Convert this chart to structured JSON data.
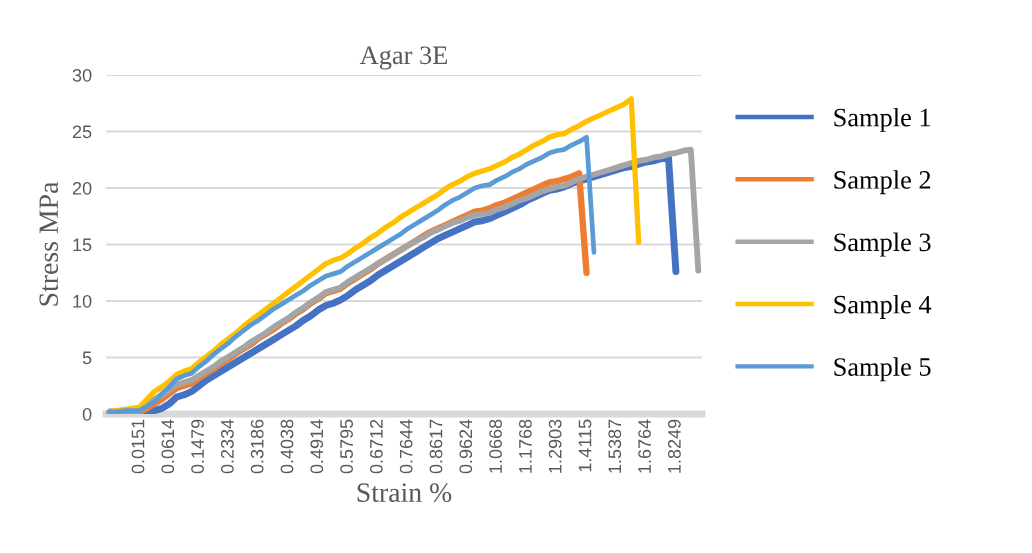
{
  "chart_data": {
    "type": "line",
    "title": "Agar 3E",
    "xlabel": "Strain %",
    "ylabel": "Stress MPa",
    "categories": [
      null,
      null,
      null,
      null,
      "0.0151",
      null,
      null,
      null,
      "0.0614",
      null,
      null,
      null,
      "0.1479",
      null,
      null,
      null,
      "0.2334",
      null,
      null,
      null,
      "0.3186",
      null,
      null,
      null,
      "0.4038",
      null,
      null,
      null,
      "0.4914",
      null,
      null,
      null,
      "0.5795",
      null,
      null,
      null,
      "0.6712",
      null,
      null,
      null,
      "0.7644",
      null,
      null,
      null,
      "0.8617",
      null,
      null,
      null,
      "0.9624",
      null,
      null,
      null,
      "1.0668",
      null,
      null,
      null,
      "1.1768",
      null,
      null,
      null,
      "1.2903",
      null,
      null,
      null,
      "1.4115",
      null,
      null,
      null,
      "1.5387",
      null,
      null,
      null,
      "1.6764",
      null,
      null,
      null,
      "1.8249",
      null,
      null,
      null
    ],
    "series": [
      {
        "name": "Sample 1",
        "color": "#4472c4",
        "values": [
          0.1,
          0.1,
          0.1,
          0.2,
          0.2,
          0.3,
          0.3,
          0.5,
          0.9,
          1.5,
          1.7,
          2.0,
          2.5,
          3.0,
          3.4,
          3.8,
          4.2,
          4.6,
          5.0,
          5.4,
          5.8,
          6.2,
          6.6,
          7.0,
          7.4,
          7.8,
          8.3,
          8.7,
          9.2,
          9.6,
          9.8,
          10.1,
          10.5,
          11.0,
          11.4,
          11.8,
          12.3,
          12.7,
          13.1,
          13.5,
          13.9,
          14.3,
          14.7,
          15.1,
          15.5,
          15.8,
          16.1,
          16.4,
          16.7,
          17.0,
          17.1,
          17.3,
          17.6,
          17.9,
          18.2,
          18.5,
          18.9,
          19.2,
          19.5,
          19.8,
          19.9,
          20.1,
          20.4,
          20.6,
          20.8,
          21.0,
          21.2,
          21.4,
          21.6,
          21.8,
          21.9,
          22.1,
          22.3,
          22.4,
          22.6,
          22.7,
          12.6,
          null,
          null,
          null
        ]
      },
      {
        "name": "Sample 2",
        "color": "#ed7d31",
        "values": [
          0.2,
          0.2,
          0.2,
          0.2,
          0.2,
          0.5,
          0.9,
          1.3,
          1.8,
          2.3,
          2.5,
          2.7,
          3.2,
          3.6,
          4.0,
          4.5,
          4.9,
          5.4,
          5.8,
          6.2,
          6.7,
          7.1,
          7.5,
          8.0,
          8.4,
          8.9,
          9.3,
          9.8,
          10.2,
          10.7,
          10.9,
          11.1,
          11.6,
          12.0,
          12.4,
          12.8,
          13.3,
          13.7,
          14.1,
          14.5,
          14.9,
          15.3,
          15.7,
          16.1,
          16.4,
          16.7,
          17.0,
          17.3,
          17.6,
          17.9,
          18.0,
          18.2,
          18.5,
          18.7,
          19.0,
          19.3,
          19.6,
          19.9,
          20.2,
          20.5,
          20.6,
          20.8,
          21.0,
          21.3,
          12.5,
          null,
          null,
          null,
          null,
          null,
          null,
          null,
          null,
          null,
          null,
          null,
          null,
          null,
          null,
          null
        ]
      },
      {
        "name": "Sample 3",
        "color": "#a5a5a5",
        "values": [
          0.2,
          0.2,
          0.3,
          0.3,
          0.3,
          0.8,
          1.3,
          1.7,
          2.1,
          2.6,
          2.8,
          3.0,
          3.4,
          3.8,
          4.2,
          4.7,
          5.1,
          5.5,
          5.9,
          6.4,
          6.8,
          7.2,
          7.7,
          8.1,
          8.5,
          9.0,
          9.4,
          9.9,
          10.3,
          10.8,
          11.0,
          11.2,
          11.7,
          12.1,
          12.5,
          12.9,
          13.3,
          13.7,
          14.1,
          14.5,
          14.9,
          15.3,
          15.6,
          16.0,
          16.3,
          16.6,
          16.9,
          17.1,
          17.4,
          17.6,
          17.7,
          17.8,
          18.1,
          18.3,
          18.6,
          18.9,
          19.1,
          19.4,
          19.7,
          19.9,
          20.1,
          20.2,
          20.5,
          20.8,
          21.0,
          21.2,
          21.4,
          21.6,
          21.8,
          22.0,
          22.2,
          22.4,
          22.5,
          22.7,
          22.8,
          23.0,
          23.1,
          23.3,
          23.4,
          12.7
        ]
      },
      {
        "name": "Sample 4",
        "color": "#ffc000",
        "values": [
          0.2,
          0.3,
          0.4,
          0.5,
          0.6,
          1.3,
          2.0,
          2.4,
          2.9,
          3.5,
          3.8,
          4.0,
          4.6,
          5.1,
          5.6,
          6.2,
          6.7,
          7.2,
          7.8,
          8.3,
          8.8,
          9.3,
          9.8,
          10.3,
          10.8,
          11.3,
          11.8,
          12.3,
          12.8,
          13.3,
          13.6,
          13.8,
          14.2,
          14.7,
          15.1,
          15.6,
          16.0,
          16.5,
          16.9,
          17.4,
          17.8,
          18.2,
          18.6,
          19.0,
          19.4,
          19.9,
          20.3,
          20.6,
          21.0,
          21.3,
          21.5,
          21.7,
          22.0,
          22.3,
          22.7,
          23.0,
          23.4,
          23.8,
          24.1,
          24.5,
          24.7,
          24.8,
          25.2,
          25.5,
          25.9,
          26.2,
          26.5,
          26.8,
          27.1,
          27.4,
          27.9,
          15.2,
          null,
          null,
          null,
          null,
          null,
          null,
          null,
          null
        ]
      },
      {
        "name": "Sample 5",
        "color": "#5b9bd5",
        "values": [
          0.2,
          0.2,
          0.3,
          0.3,
          0.3,
          0.7,
          1.1,
          1.8,
          2.4,
          3.1,
          3.4,
          3.6,
          4.2,
          4.7,
          5.3,
          5.8,
          6.3,
          6.9,
          7.4,
          7.9,
          8.3,
          8.8,
          9.3,
          9.7,
          10.1,
          10.5,
          10.9,
          11.4,
          11.8,
          12.2,
          12.4,
          12.6,
          13.1,
          13.5,
          13.9,
          14.3,
          14.7,
          15.1,
          15.5,
          15.9,
          16.4,
          16.8,
          17.2,
          17.6,
          18.0,
          18.5,
          18.9,
          19.2,
          19.6,
          20.0,
          20.2,
          20.3,
          20.7,
          21.0,
          21.4,
          21.7,
          22.1,
          22.4,
          22.7,
          23.1,
          23.3,
          23.4,
          23.8,
          24.1,
          24.5,
          14.3,
          null,
          null,
          null,
          null,
          null,
          null,
          null,
          null,
          null,
          null,
          null,
          null,
          null,
          null
        ]
      }
    ],
    "ylim": [
      0,
      30
    ],
    "yticks": [
      0,
      5,
      10,
      15,
      20,
      25,
      30
    ],
    "grid": "y",
    "legend": "right",
    "line_style": "solid",
    "marker": "none"
  }
}
